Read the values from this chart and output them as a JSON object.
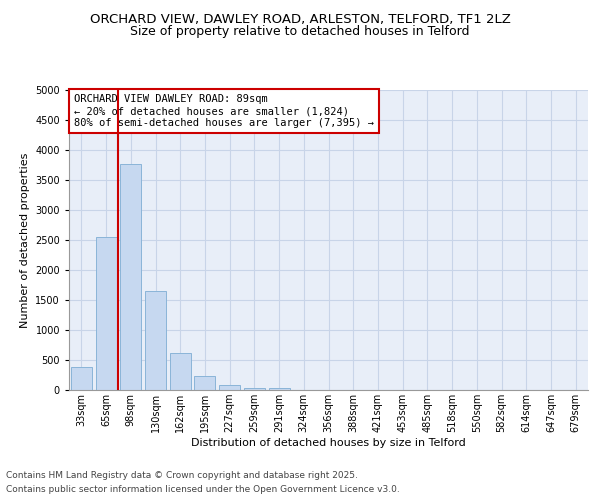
{
  "title1": "ORCHARD VIEW, DAWLEY ROAD, ARLESTON, TELFORD, TF1 2LZ",
  "title2": "Size of property relative to detached houses in Telford",
  "xlabel": "Distribution of detached houses by size in Telford",
  "ylabel": "Number of detached properties",
  "categories": [
    "33sqm",
    "65sqm",
    "98sqm",
    "130sqm",
    "162sqm",
    "195sqm",
    "227sqm",
    "259sqm",
    "291sqm",
    "324sqm",
    "356sqm",
    "388sqm",
    "421sqm",
    "453sqm",
    "485sqm",
    "518sqm",
    "550sqm",
    "582sqm",
    "614sqm",
    "647sqm",
    "679sqm"
  ],
  "values": [
    380,
    2550,
    3760,
    1650,
    620,
    230,
    90,
    40,
    35,
    0,
    0,
    0,
    0,
    0,
    0,
    0,
    0,
    0,
    0,
    0,
    0
  ],
  "bar_color": "#c6d8f0",
  "bar_edge_color": "#8ab4d8",
  "grid_color": "#c8d4e8",
  "background_color": "#e8eef8",
  "vline_color": "#cc0000",
  "annotation_text": "ORCHARD VIEW DAWLEY ROAD: 89sqm\n← 20% of detached houses are smaller (1,824)\n80% of semi-detached houses are larger (7,395) →",
  "annotation_box_color": "#cc0000",
  "ylim": [
    0,
    5000
  ],
  "yticks": [
    0,
    500,
    1000,
    1500,
    2000,
    2500,
    3000,
    3500,
    4000,
    4500,
    5000
  ],
  "footer_line1": "Contains HM Land Registry data © Crown copyright and database right 2025.",
  "footer_line2": "Contains public sector information licensed under the Open Government Licence v3.0.",
  "title1_fontsize": 9.5,
  "title2_fontsize": 9,
  "tick_fontsize": 7,
  "label_fontsize": 8,
  "annot_fontsize": 7.5,
  "footer_fontsize": 6.5
}
